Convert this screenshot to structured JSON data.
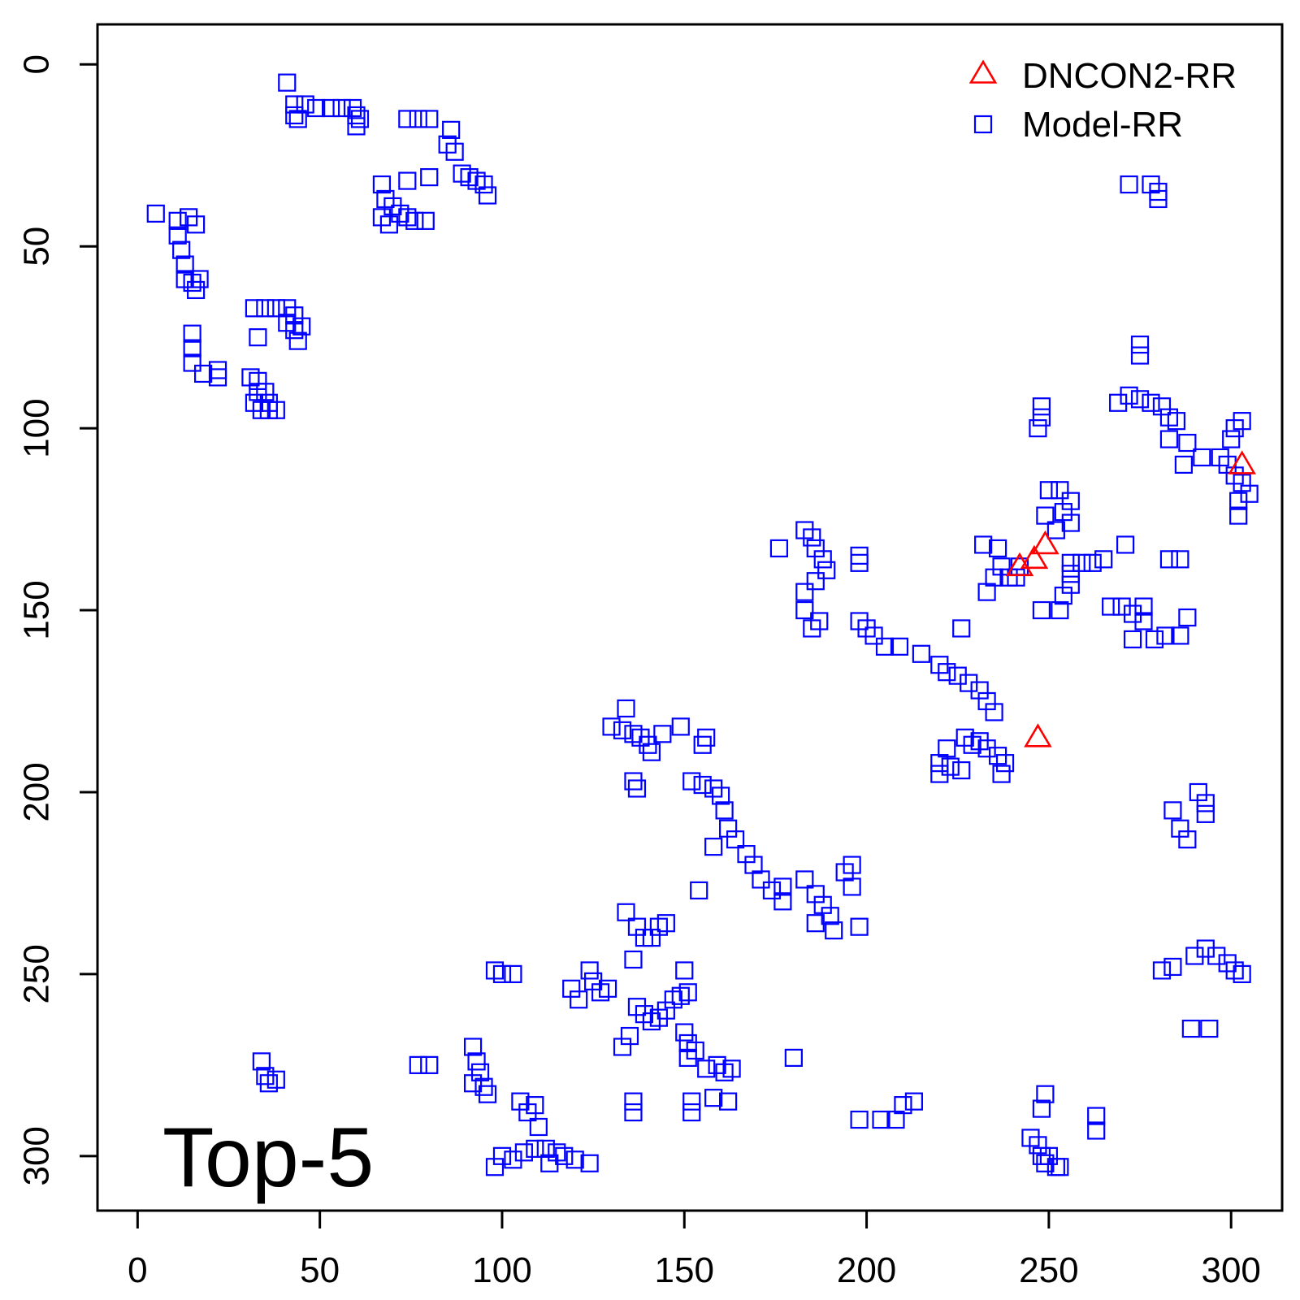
{
  "chart_data": {
    "type": "scatter",
    "panel_label": "Top-5",
    "xlim": [
      -11,
      314
    ],
    "ylim": [
      315,
      -11
    ],
    "y_reversed": true,
    "x_ticks": [
      "0",
      "50",
      "100",
      "150",
      "200",
      "250",
      "300"
    ],
    "y_ticks": [
      "0",
      "50",
      "100",
      "150",
      "200",
      "250",
      "300"
    ],
    "legend": {
      "placement": "top-right"
    },
    "series": [
      {
        "name": "DNCON2-RR",
        "marker": "triangle",
        "color": "#ff0000",
        "points": [
          [
            303,
            110
          ],
          [
            249,
            132
          ],
          [
            246,
            136
          ],
          [
            242,
            138
          ],
          [
            247,
            185
          ]
        ]
      },
      {
        "name": "Model-RR",
        "marker": "square",
        "color": "#0000ff",
        "points": [
          [
            41,
            5
          ],
          [
            43,
            11
          ],
          [
            46,
            11
          ],
          [
            49,
            12
          ],
          [
            53,
            12
          ],
          [
            56,
            12
          ],
          [
            59,
            12
          ],
          [
            60,
            14
          ],
          [
            43,
            14
          ],
          [
            44,
            15
          ],
          [
            61,
            15
          ],
          [
            60,
            17
          ],
          [
            74,
            15
          ],
          [
            77,
            15
          ],
          [
            80,
            15
          ],
          [
            86,
            18
          ],
          [
            85,
            22
          ],
          [
            87,
            24
          ],
          [
            80,
            31
          ],
          [
            89,
            30
          ],
          [
            91,
            31
          ],
          [
            93,
            32
          ],
          [
            95,
            33
          ],
          [
            96,
            36
          ],
          [
            74,
            32
          ],
          [
            67,
            33
          ],
          [
            68,
            37
          ],
          [
            70,
            39
          ],
          [
            72,
            41
          ],
          [
            74,
            42
          ],
          [
            76,
            43
          ],
          [
            69,
            44
          ],
          [
            67,
            42
          ],
          [
            79,
            43
          ],
          [
            5,
            41
          ],
          [
            11,
            43
          ],
          [
            14,
            42
          ],
          [
            16,
            44
          ],
          [
            11,
            47
          ],
          [
            12,
            51
          ],
          [
            13,
            55
          ],
          [
            13,
            59
          ],
          [
            15,
            60
          ],
          [
            16,
            62
          ],
          [
            17,
            59
          ],
          [
            15,
            74
          ],
          [
            15,
            78
          ],
          [
            15,
            82
          ],
          [
            18,
            85
          ],
          [
            22,
            84
          ],
          [
            22,
            86
          ],
          [
            32,
            67
          ],
          [
            35,
            67
          ],
          [
            38,
            67
          ],
          [
            41,
            67
          ],
          [
            43,
            69
          ],
          [
            41,
            71
          ],
          [
            43,
            73
          ],
          [
            44,
            76
          ],
          [
            45,
            72
          ],
          [
            33,
            75
          ],
          [
            31,
            86
          ],
          [
            33,
            87
          ],
          [
            33,
            90
          ],
          [
            35,
            90
          ],
          [
            36,
            93
          ],
          [
            36,
            95
          ],
          [
            34,
            95
          ],
          [
            38,
            95
          ],
          [
            32,
            93
          ],
          [
            272,
            33
          ],
          [
            278,
            33
          ],
          [
            280,
            35
          ],
          [
            280,
            37
          ],
          [
            275,
            77
          ],
          [
            275,
            80
          ],
          [
            269,
            93
          ],
          [
            272,
            91
          ],
          [
            275,
            92
          ],
          [
            278,
            93
          ],
          [
            281,
            94
          ],
          [
            283,
            97
          ],
          [
            285,
            98
          ],
          [
            283,
            103
          ],
          [
            288,
            104
          ],
          [
            292,
            108
          ],
          [
            287,
            110
          ],
          [
            297,
            108
          ],
          [
            299,
            110
          ],
          [
            301,
            113
          ],
          [
            303,
            115
          ],
          [
            305,
            118
          ],
          [
            302,
            120
          ],
          [
            302,
            124
          ],
          [
            300,
            103
          ],
          [
            303,
            98
          ],
          [
            301,
            100
          ],
          [
            248,
            94
          ],
          [
            248,
            97
          ],
          [
            247,
            100
          ],
          [
            250,
            117
          ],
          [
            253,
            117
          ],
          [
            256,
            120
          ],
          [
            254,
            123
          ],
          [
            256,
            126
          ],
          [
            252,
            128
          ],
          [
            249,
            124
          ],
          [
            183,
            128
          ],
          [
            185,
            130
          ],
          [
            186,
            133
          ],
          [
            188,
            136
          ],
          [
            189,
            139
          ],
          [
            186,
            142
          ],
          [
            183,
            145
          ],
          [
            183,
            150
          ],
          [
            187,
            153
          ],
          [
            185,
            155
          ],
          [
            176,
            133
          ],
          [
            198,
            135
          ],
          [
            198,
            137
          ],
          [
            232,
            132
          ],
          [
            236,
            133
          ],
          [
            237,
            138
          ],
          [
            235,
            141
          ],
          [
            239,
            141
          ],
          [
            241,
            141
          ],
          [
            242,
            138
          ],
          [
            233,
            145
          ],
          [
            256,
            137
          ],
          [
            259,
            137
          ],
          [
            262,
            137
          ],
          [
            265,
            136
          ],
          [
            256,
            140
          ],
          [
            256,
            143
          ],
          [
            271,
            132
          ],
          [
            254,
            146
          ],
          [
            253,
            150
          ],
          [
            248,
            150
          ],
          [
            283,
            136
          ],
          [
            286,
            136
          ],
          [
            267,
            149
          ],
          [
            270,
            149
          ],
          [
            273,
            151
          ],
          [
            276,
            149
          ],
          [
            276,
            153
          ],
          [
            279,
            158
          ],
          [
            282,
            157
          ],
          [
            286,
            157
          ],
          [
            288,
            152
          ],
          [
            273,
            158
          ],
          [
            198,
            153
          ],
          [
            200,
            155
          ],
          [
            202,
            157
          ],
          [
            205,
            160
          ],
          [
            209,
            160
          ],
          [
            215,
            162
          ],
          [
            220,
            165
          ],
          [
            222,
            167
          ],
          [
            225,
            168
          ],
          [
            228,
            170
          ],
          [
            231,
            172
          ],
          [
            233,
            175
          ],
          [
            235,
            178
          ],
          [
            226,
            155
          ],
          [
            130,
            182
          ],
          [
            133,
            183
          ],
          [
            136,
            184
          ],
          [
            138,
            185
          ],
          [
            140,
            187
          ],
          [
            144,
            184
          ],
          [
            149,
            182
          ],
          [
            156,
            185
          ],
          [
            155,
            187
          ],
          [
            134,
            177
          ],
          [
            141,
            189
          ],
          [
            136,
            197
          ],
          [
            137,
            199
          ],
          [
            152,
            197
          ],
          [
            155,
            198
          ],
          [
            158,
            199
          ],
          [
            160,
            201
          ],
          [
            161,
            205
          ],
          [
            162,
            210
          ],
          [
            158,
            215
          ],
          [
            164,
            213
          ],
          [
            167,
            217
          ],
          [
            169,
            220
          ],
          [
            171,
            224
          ],
          [
            174,
            227
          ],
          [
            177,
            230
          ],
          [
            177,
            226
          ],
          [
            183,
            224
          ],
          [
            186,
            228
          ],
          [
            188,
            231
          ],
          [
            190,
            234
          ],
          [
            191,
            238
          ],
          [
            186,
            236
          ],
          [
            194,
            222
          ],
          [
            196,
            220
          ],
          [
            196,
            226
          ],
          [
            198,
            237
          ],
          [
            227,
            185
          ],
          [
            231,
            186
          ],
          [
            233,
            188
          ],
          [
            236,
            190
          ],
          [
            238,
            192
          ],
          [
            237,
            195
          ],
          [
            229,
            187
          ],
          [
            222,
            188
          ],
          [
            220,
            192
          ],
          [
            220,
            195
          ],
          [
            223,
            193
          ],
          [
            226,
            194
          ],
          [
            154,
            227
          ],
          [
            134,
            233
          ],
          [
            137,
            237
          ],
          [
            139,
            240
          ],
          [
            141,
            240
          ],
          [
            143,
            237
          ],
          [
            145,
            236
          ],
          [
            136,
            246
          ],
          [
            284,
            205
          ],
          [
            286,
            210
          ],
          [
            288,
            213
          ],
          [
            291,
            200
          ],
          [
            293,
            203
          ],
          [
            293,
            206
          ],
          [
            281,
            249
          ],
          [
            284,
            248
          ],
          [
            290,
            245
          ],
          [
            293,
            243
          ],
          [
            296,
            245
          ],
          [
            299,
            247
          ],
          [
            301,
            249
          ],
          [
            303,
            250
          ],
          [
            289,
            265
          ],
          [
            294,
            265
          ],
          [
            34,
            274
          ],
          [
            35,
            278
          ],
          [
            38,
            279
          ],
          [
            36,
            280
          ],
          [
            77,
            275
          ],
          [
            80,
            275
          ],
          [
            92,
            270
          ],
          [
            93,
            274
          ],
          [
            94,
            277
          ],
          [
            95,
            281
          ],
          [
            96,
            283
          ],
          [
            92,
            280
          ],
          [
            98,
            249
          ],
          [
            100,
            250
          ],
          [
            103,
            250
          ],
          [
            105,
            285
          ],
          [
            107,
            288
          ],
          [
            109,
            286
          ],
          [
            110,
            292
          ],
          [
            100,
            300
          ],
          [
            103,
            301
          ],
          [
            106,
            299
          ],
          [
            109,
            298
          ],
          [
            112,
            298
          ],
          [
            115,
            299
          ],
          [
            117,
            300
          ],
          [
            120,
            301
          ],
          [
            113,
            302
          ],
          [
            98,
            303
          ],
          [
            124,
            302
          ],
          [
            124,
            249
          ],
          [
            125,
            252
          ],
          [
            127,
            255
          ],
          [
            129,
            254
          ],
          [
            119,
            254
          ],
          [
            121,
            257
          ],
          [
            137,
            259
          ],
          [
            139,
            261
          ],
          [
            141,
            263
          ],
          [
            143,
            262
          ],
          [
            145,
            260
          ],
          [
            147,
            257
          ],
          [
            149,
            256
          ],
          [
            151,
            255
          ],
          [
            150,
            249
          ],
          [
            135,
            267
          ],
          [
            133,
            270
          ],
          [
            150,
            266
          ],
          [
            151,
            269
          ],
          [
            153,
            271
          ],
          [
            151,
            273
          ],
          [
            156,
            276
          ],
          [
            159,
            275
          ],
          [
            161,
            277
          ],
          [
            163,
            276
          ],
          [
            158,
            284
          ],
          [
            162,
            285
          ],
          [
            136,
            285
          ],
          [
            136,
            288
          ],
          [
            152,
            285
          ],
          [
            152,
            288
          ],
          [
            180,
            273
          ],
          [
            198,
            290
          ],
          [
            204,
            290
          ],
          [
            208,
            290
          ],
          [
            210,
            286
          ],
          [
            213,
            285
          ],
          [
            245,
            295
          ],
          [
            247,
            297
          ],
          [
            248,
            300
          ],
          [
            250,
            300
          ],
          [
            252,
            303
          ],
          [
            249,
            302
          ],
          [
            253,
            303
          ],
          [
            248,
            287
          ],
          [
            249,
            283
          ],
          [
            263,
            293
          ],
          [
            263,
            289
          ]
        ]
      }
    ]
  }
}
